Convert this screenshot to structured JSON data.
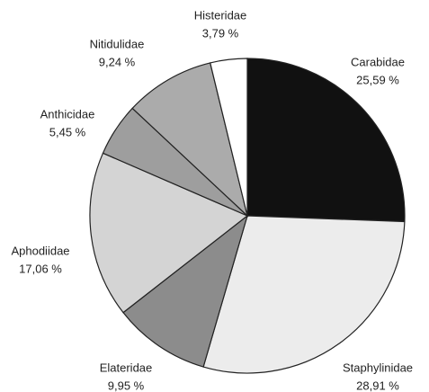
{
  "chart_data": {
    "type": "pie",
    "categories": [
      "Carabidae",
      "Staphylinidae",
      "Elateridae",
      "Aphodiidae",
      "Anthicidae",
      "Nitidulidae",
      "Histeridae"
    ],
    "values": [
      25.59,
      28.91,
      9.95,
      17.06,
      5.45,
      9.24,
      3.79
    ],
    "value_labels": [
      "25,59 %",
      "28,91 %",
      "9,95 %",
      "17,06 %",
      "5,45 %",
      "9,24 %",
      "3,79 %"
    ],
    "colors": [
      "#111111",
      "#ececec",
      "#8c8c8c",
      "#d4d4d4",
      "#9e9e9e",
      "#ababab",
      "#ffffff"
    ]
  }
}
